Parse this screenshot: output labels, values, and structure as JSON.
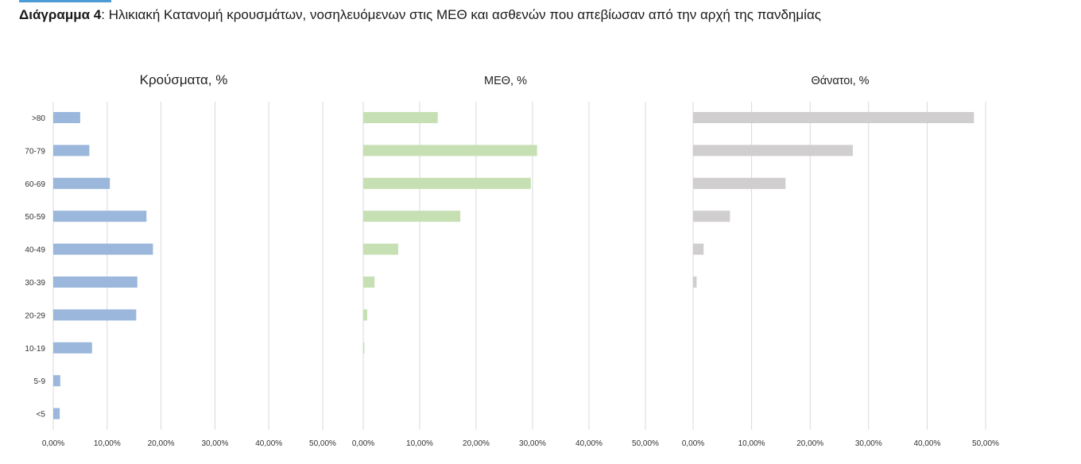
{
  "figure": {
    "label": "Διάγραμμα 4",
    "caption": ": Ηλικιακή Κατανομή κρουσμάτων, νοσηλευόμενων στις ΜΕΘ και ασθενών που απεβίωσαν από την αρχή της πανδημίας"
  },
  "colors": {
    "cases": "#9bb7dc",
    "icu": "#c6e0b4",
    "deaths": "#d0cece",
    "grid": "#d9d9d9",
    "text": "#333333"
  },
  "chart_data": [
    {
      "type": "bar",
      "orientation": "horizontal",
      "title": "Κρούσματα, %",
      "categories": [
        ">80",
        "70-79",
        "60-69",
        "50-59",
        "40-49",
        "30-39",
        "20-29",
        "10-19",
        "5-9",
        "<5"
      ],
      "values": [
        5.0,
        6.7,
        10.5,
        17.3,
        18.5,
        15.6,
        15.4,
        7.2,
        1.3,
        1.2
      ],
      "xlim": [
        0,
        50
      ],
      "xticks": [
        "0,00%",
        "10,00%",
        "20,00%",
        "30,00%",
        "40,00%",
        "50,00%"
      ],
      "grid": true
    },
    {
      "type": "bar",
      "orientation": "horizontal",
      "title": "ΜΕΘ, %",
      "categories": [
        ">80",
        "70-79",
        "60-69",
        "50-59",
        "40-49",
        "30-39",
        "20-29",
        "10-19",
        "5-9",
        "<5"
      ],
      "values": [
        13.2,
        30.8,
        29.7,
        17.2,
        6.2,
        2.0,
        0.7,
        0.2,
        0,
        0
      ],
      "xlim": [
        0,
        50
      ],
      "xticks": [
        "0,00%",
        "10,00%",
        "20,00%",
        "30,00%",
        "40,00%",
        "50,00%"
      ],
      "grid": true
    },
    {
      "type": "bar",
      "orientation": "horizontal",
      "title": "Θάνατοι, %",
      "categories": [
        ">80",
        "70-79",
        "60-69",
        "50-59",
        "40-49",
        "30-39",
        "20-29",
        "10-19",
        "5-9",
        "<5"
      ],
      "values": [
        48.0,
        27.3,
        15.8,
        6.3,
        1.8,
        0.6,
        0,
        0,
        0,
        0
      ],
      "xlim": [
        0,
        50
      ],
      "xticks": [
        "0,00%",
        "10,00%",
        "20,00%",
        "30,00%",
        "40,00%",
        "50,00%"
      ],
      "grid": true
    }
  ]
}
